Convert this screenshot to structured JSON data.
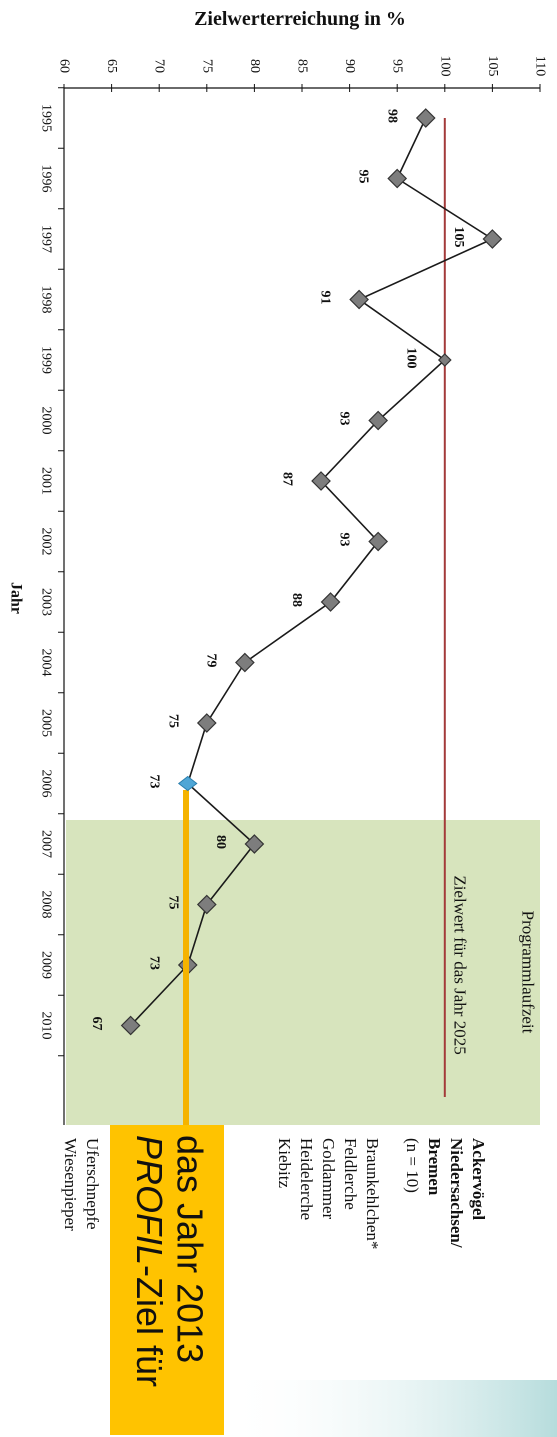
{
  "chart_data": {
    "type": "line",
    "title": "",
    "xlabel": "Jahr",
    "ylabel": "Zielwerterreichung in %",
    "ylim": [
      60,
      110
    ],
    "yticks": [
      "60",
      "65",
      "70",
      "75",
      "80",
      "85",
      "90",
      "95",
      "100",
      "105",
      "110"
    ],
    "categories": [
      "1995",
      "1996",
      "1997",
      "1998",
      "1999",
      "2000",
      "2001",
      "2002",
      "2003",
      "2004",
      "2005",
      "2006",
      "2007",
      "2008",
      "2009",
      "2010"
    ],
    "series": [
      {
        "values": [
          98,
          95,
          105,
          91,
          100,
          93,
          87,
          93,
          88,
          79,
          75,
          73,
          80,
          75,
          73,
          67
        ]
      }
    ],
    "data_labels": [
      "98",
      "95",
      "105",
      "91",
      "100",
      "93",
      "87",
      "93",
      "88",
      "79",
      "75",
      "73",
      "80",
      "75",
      "73",
      "67"
    ],
    "target_value": 100,
    "target_label": "Zielwert für das Jahr 2025",
    "program_period_label": "Programmlaufzeit",
    "program_period_start": "2007",
    "highlight_year": "2006",
    "orientation": "rotated 90° clockwise",
    "colors": {
      "line": "#1a1a1a",
      "marker_fill": "#7d7d7d",
      "highlight_marker": "#4fa6d6",
      "target_line": "#a33a3a",
      "program_shade": "#d7e4bd",
      "callout_fill": "#ffc300",
      "callout_arrow": "#f5b300"
    }
  },
  "side_info": {
    "title_bold": [
      "Ackervögel",
      "Niedersachsen/",
      "Bremen"
    ],
    "sample": "(n = 10)",
    "species": [
      "Braunkehlchen*",
      "Feldlerche",
      "Goldammer",
      "Heidelerche",
      "Kiebitz",
      "Uferschnepfe",
      "Wiesenpieper"
    ]
  },
  "callout": {
    "line1_italic": "PROFIL",
    "line1_rest": "-Ziel für",
    "line2": "das Jahr 2013"
  }
}
